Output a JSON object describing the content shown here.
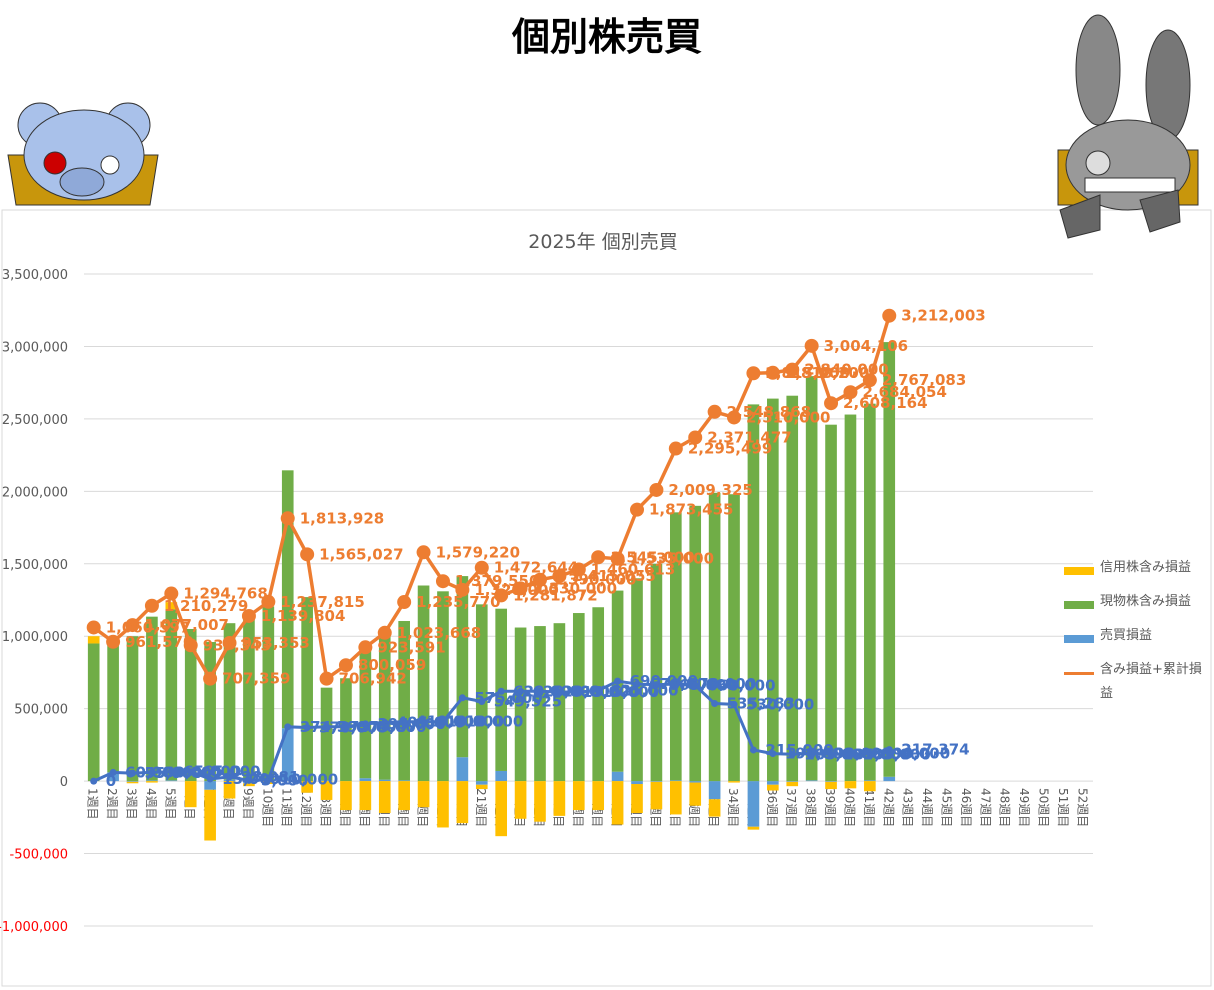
{
  "page_title": "個別株売買",
  "chart_data": {
    "type": "combo",
    "title": "2025年 個別売買",
    "categories": [
      "1週目",
      "2週目",
      "3週目",
      "4週目",
      "5週目",
      "6週目",
      "7週目",
      "8週目",
      "9週目",
      "10週目",
      "11週目",
      "12週目",
      "13週目",
      "14週目",
      "15週目",
      "16週目",
      "17週目",
      "18週目",
      "19週目",
      "20週目",
      "21週目",
      "22週目",
      "23週目",
      "24週目",
      "25週目",
      "26週目",
      "27週目",
      "28週目",
      "29週目",
      "30週目",
      "31週目",
      "32週目",
      "33週目",
      "34週目",
      "35週目",
      "36週目",
      "37週目",
      "38週目",
      "39週目",
      "40週目",
      "41週目",
      "42週目",
      "43週目",
      "44週目",
      "45週目",
      "46週目",
      "47週目",
      "48週目",
      "49週目",
      "50週目",
      "51週目",
      "52週目"
    ],
    "ylim": [
      -1000000,
      3500000
    ],
    "yticks": [
      {
        "value": -1000000,
        "label": "-1,000,000"
      },
      {
        "value": -500000,
        "label": "-500,000"
      },
      0,
      {
        "value": 500000,
        "label": "500,000"
      },
      {
        "value": 1000000,
        "label": "1,000,000"
      },
      {
        "value": 1500000,
        "label": "1,500,000"
      },
      {
        "value": 2000000,
        "label": "2,000,000"
      },
      {
        "value": 2500000,
        "label": "2,500,000"
      },
      {
        "value": 3000000,
        "label": "3,000,000"
      },
      {
        "value": 3500000,
        "label": "3,500,000"
      }
    ],
    "negative_tick_color": "#ff0000",
    "grid": true,
    "legend": "right",
    "series": [
      {
        "name": "信用株含み損益",
        "type": "bar",
        "color": "#ffc000",
        "values": [
          50000,
          0,
          -10000,
          -10000,
          50000,
          -180000,
          -350000,
          -120000,
          -20000,
          -20000,
          0,
          -80000,
          -130000,
          -200000,
          -200000,
          -220000,
          -200000,
          -180000,
          -320000,
          -290000,
          -30000,
          -380000,
          -260000,
          -280000,
          -240000,
          -200000,
          -200000,
          -300000,
          -200000,
          -190000,
          -230000,
          -160000,
          -120000,
          -10000,
          -20000,
          -40000,
          -30000,
          0,
          -50000,
          -50000,
          -70000,
          0,
          null,
          null,
          null,
          null,
          null,
          null,
          null,
          null,
          null,
          null
        ]
      },
      {
        "name": "現物株含み損益",
        "type": "bar",
        "color": "#70ad47",
        "values": [
          950000,
          930000,
          1000000,
          1130000,
          1180000,
          1050000,
          960000,
          1080000,
          1130000,
          1200000,
          1780000,
          1270000,
          640000,
          710000,
          880000,
          1000000,
          1100000,
          1350000,
          1310000,
          1250000,
          1220000,
          1120000,
          1060000,
          1070000,
          1090000,
          1160000,
          1200000,
          1250000,
          1400000,
          1500000,
          1850000,
          1900000,
          1990000,
          1980000,
          2600000,
          2640000,
          2660000,
          2790000,
          2460000,
          2530000,
          2600000,
          3000000,
          null,
          null,
          null,
          null,
          null,
          null,
          null,
          null,
          null,
          null
        ]
      },
      {
        "name": "売買損益",
        "type": "bar",
        "color": "#5b9bd5",
        "values": [
          0,
          60000,
          -5000,
          5000,
          5000,
          0,
          -60000,
          10000,
          -15000,
          5000,
          365000,
          0,
          5000,
          0,
          20000,
          10000,
          5000,
          0,
          0,
          165000,
          -25000,
          70000,
          0,
          0,
          0,
          0,
          0,
          65000,
          -20000,
          -5000,
          5000,
          -10000,
          -125000,
          0,
          -315000,
          -25000,
          -5000,
          5000,
          -5000,
          0,
          5000,
          30000,
          null,
          null,
          null,
          null,
          null,
          null,
          null,
          null,
          null,
          null
        ]
      },
      {
        "name": "含み損益+累計損益",
        "type": "line",
        "color": "#ed7d31",
        "values": [
          1060597,
          961570,
          1077007,
          1210279,
          1294768,
          937343,
          707359,
          953353,
          1139804,
          1237815,
          1813928,
          1565027,
          706942,
          800059,
          923591,
          1023668,
          1235770,
          1579220,
          1379550,
          1320000,
          1472644,
          1281872,
          1330000,
          1390000,
          1415055,
          1460613,
          1545000,
          1535000,
          1873455,
          2009325,
          2295499,
          2371477,
          2548868,
          2510000,
          2815000,
          2818200,
          2840000,
          3004106,
          2608164,
          2684054,
          2767083,
          3212003,
          null,
          null,
          null,
          null,
          null,
          null,
          null,
          null,
          null,
          null
        ],
        "value_labels": [
          "1,060,597",
          "961,570",
          "1,077,007",
          "1,210,279",
          "1,294,768",
          "937,343",
          "707,359",
          "953,353",
          "1,139,804",
          "1,237,815",
          "1,813,928",
          "1,565,027",
          "706,942",
          "800,059",
          "923,591",
          "1,023,668",
          "1,235,770",
          "1,579,220",
          "1,379,550",
          "1,320,000",
          "1,472,644",
          "1,281,872",
          "1,330,000",
          "1,390,000",
          "1,415,055",
          "1,460,613",
          "1,545,000",
          "1,535,000",
          "1,873,455",
          "2,009,325",
          "2,295,499",
          "2,371,477",
          "2,548,868",
          "2,510,000",
          "2,815,000",
          "2,818,200",
          "2,840,000",
          "3,004,106",
          "2,608,164",
          "2,684,054",
          "2,767,083",
          "3,212,003",
          null,
          null,
          null,
          null,
          null,
          null,
          null,
          null,
          null,
          null
        ]
      },
      {
        "type": "line",
        "color": "#4472c4",
        "values": [
          0,
          60000,
          55000,
          60000,
          65000,
          65000,
          15000,
          28981,
          5000,
          10000,
          374594,
          370000,
          375000,
          375000,
          395000,
          405000,
          410000,
          410000,
          410000,
          575000,
          549525,
          620000,
          620000,
          620000,
          615000,
          615000,
          625000,
          690000,
          670000,
          665000,
          670000,
          660000,
          535283,
          530000,
          215000,
          190000,
          185000,
          190000,
          185000,
          185000,
          190000,
          217374,
          null,
          null,
          null,
          null,
          null,
          null,
          null,
          null,
          null,
          null
        ],
        "value_labels": [
          "0",
          "60,000",
          "55,000",
          "60,000",
          "65,000",
          "65,000",
          "15,000",
          "28,981",
          "5,000",
          "10,000",
          "374,594",
          "370,000",
          "375,000",
          "375,000",
          "395,000",
          "405,000",
          "410,000",
          "410,000",
          "410,000",
          "575,000",
          "549,525",
          "620,000",
          "620,000",
          "620,000",
          "615,000",
          "615,000",
          "625,000",
          "690,000",
          "670,000",
          "665,000",
          "670,000",
          "660,000",
          "535,283",
          "530,000",
          "215,000",
          "190,000",
          "185,000",
          "190,000",
          "185,000",
          "185,000",
          "190,000",
          "217,374",
          null,
          null,
          null,
          null,
          null,
          null,
          null,
          null,
          null,
          null
        ]
      }
    ]
  }
}
